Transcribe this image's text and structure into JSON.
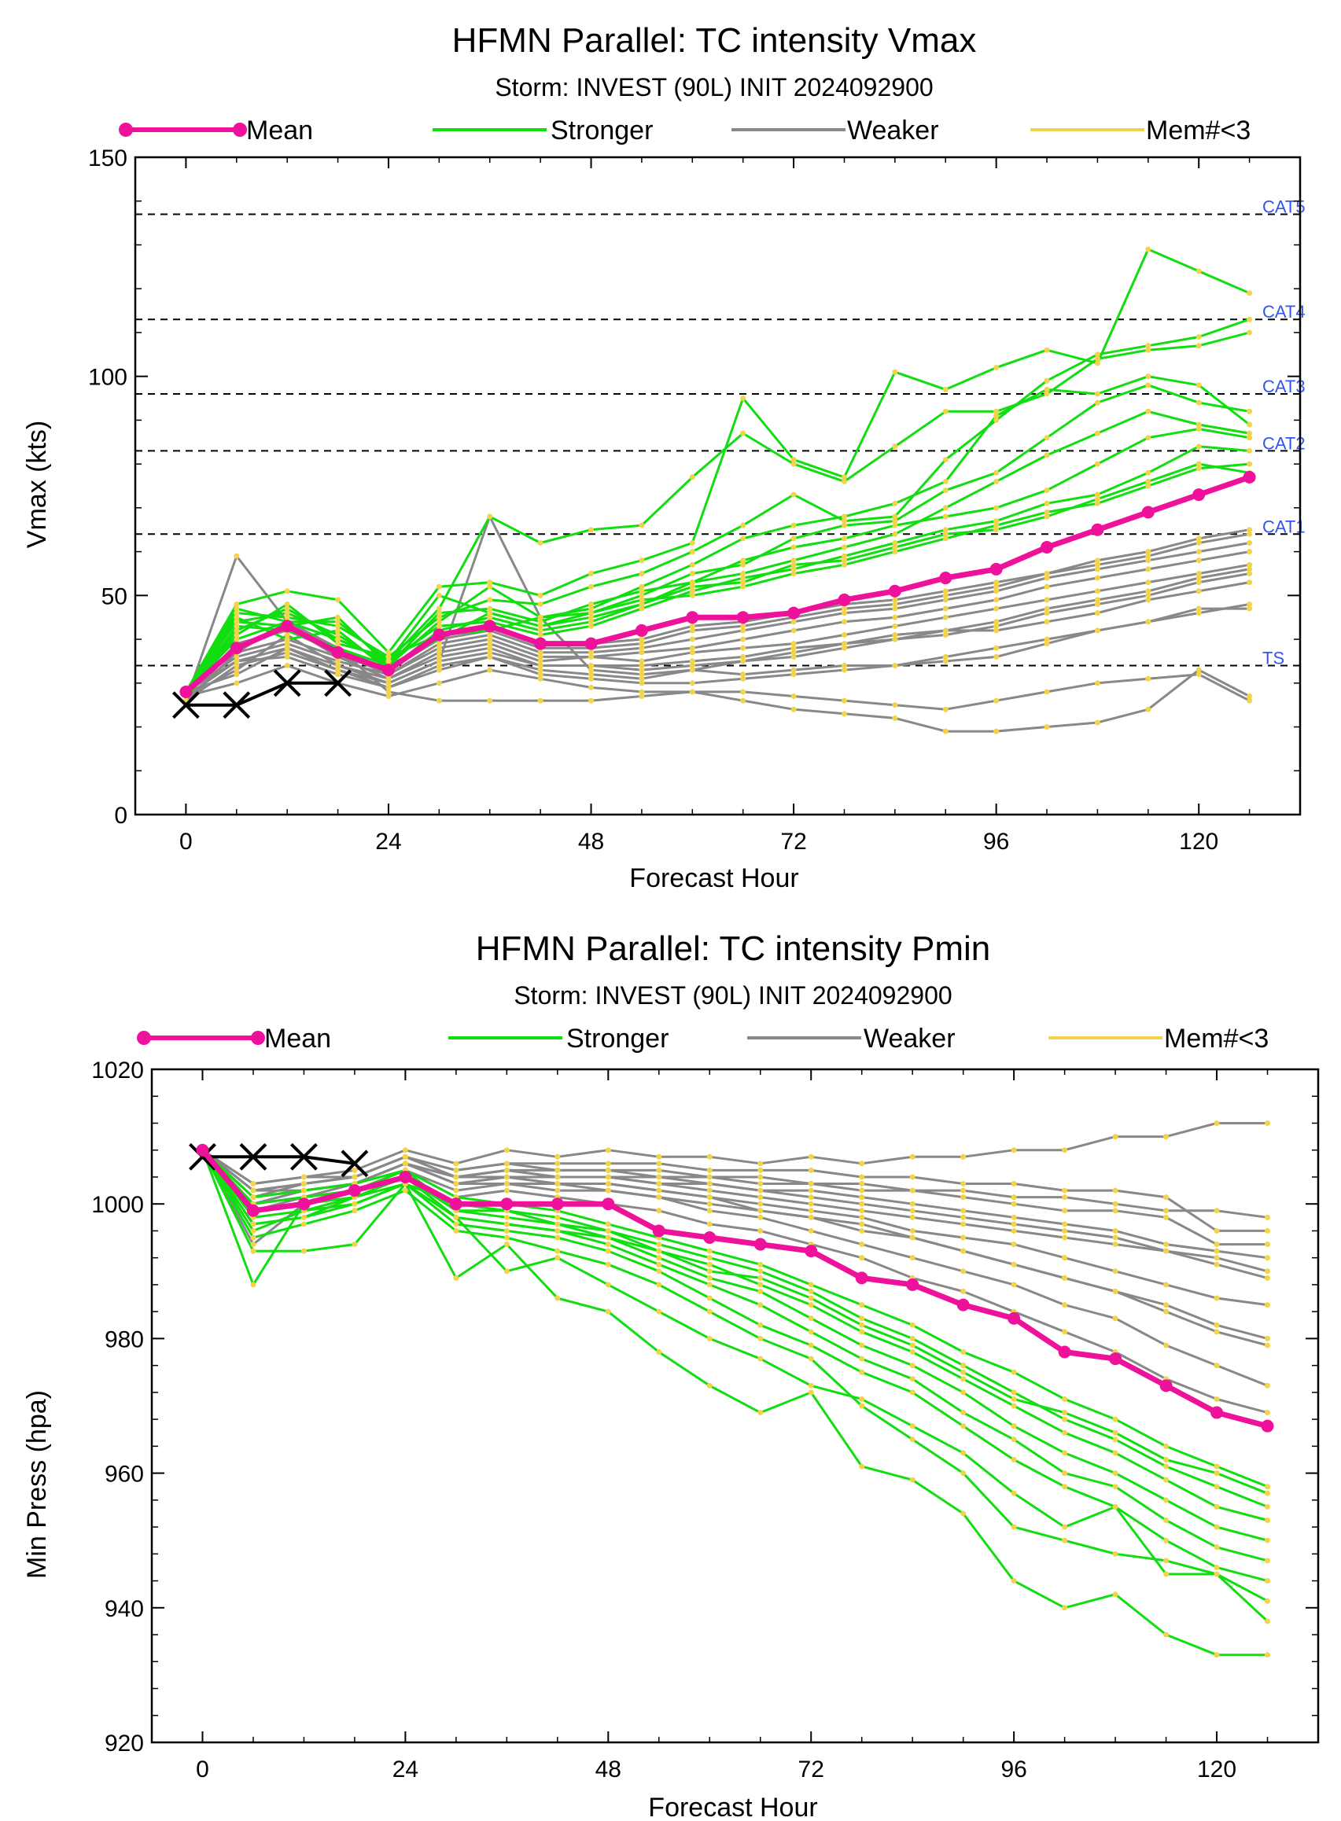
{
  "colors": {
    "mean": "#ee1199",
    "stronger": "#11dd11",
    "weaker": "#888888",
    "member_dot": "#f2d44a",
    "observed": "#000000",
    "category_label": "#3355ee"
  },
  "chart_data": [
    {
      "type": "line",
      "title": "HFMN Parallel: TC intensity Vmax",
      "subtitle": "Storm: INVEST (90L) INIT 2024092900",
      "xlabel": "Forecast Hour",
      "ylabel": "Vmax (kts)",
      "xlim": [
        -6,
        132
      ],
      "ylim": [
        0,
        150
      ],
      "xticks": [
        0,
        24,
        48,
        72,
        96,
        120
      ],
      "yticks": [
        0,
        50,
        100,
        150
      ],
      "legend_position": "top",
      "legend": [
        {
          "label": "Mean",
          "kind": "mean"
        },
        {
          "label": "Stronger",
          "kind": "stronger"
        },
        {
          "label": "Weaker",
          "kind": "weaker"
        },
        {
          "label": "Mem#<3",
          "kind": "member_dot"
        }
      ],
      "reference_lines": [
        {
          "label": "TS",
          "y": 34
        },
        {
          "label": "CAT1",
          "y": 64
        },
        {
          "label": "CAT2",
          "y": 83
        },
        {
          "label": "CAT3",
          "y": 96
        },
        {
          "label": "CAT4",
          "y": 113
        },
        {
          "label": "CAT5",
          "y": 137
        }
      ],
      "x": [
        0,
        6,
        12,
        18,
        24,
        30,
        36,
        42,
        48,
        54,
        60,
        66,
        72,
        78,
        84,
        90,
        96,
        102,
        108,
        114,
        120,
        126
      ],
      "mean": [
        28,
        38,
        43,
        37,
        33,
        41,
        43,
        39,
        39,
        42,
        45,
        45,
        46,
        49,
        51,
        54,
        56,
        61,
        65,
        69,
        73,
        77
      ],
      "observed": {
        "x": [
          0,
          6,
          12,
          18
        ],
        "y": [
          25,
          25,
          30,
          30
        ]
      },
      "stronger_members": [
        [
          28,
          48,
          51,
          49,
          37,
          52,
          53,
          50,
          55,
          58,
          62,
          95,
          81,
          77,
          101,
          97,
          102,
          106,
          103,
          129,
          124,
          119
        ],
        [
          27,
          47,
          44,
          40,
          35,
          47,
          68,
          62,
          65,
          66,
          77,
          87,
          80,
          76,
          84,
          92,
          92,
          96,
          104,
          106,
          107,
          110
        ],
        [
          26,
          46,
          45,
          43,
          36,
          45,
          49,
          48,
          52,
          55,
          60,
          66,
          73,
          67,
          68,
          81,
          90,
          99,
          105,
          107,
          109,
          113
        ],
        [
          28,
          44,
          46,
          41,
          34,
          44,
          52,
          45,
          47,
          52,
          57,
          63,
          66,
          68,
          71,
          76,
          91,
          97,
          96,
          100,
          98,
          89
        ],
        [
          27,
          42,
          47,
          40,
          35,
          50,
          46,
          43,
          46,
          50,
          55,
          57,
          63,
          66,
          67,
          74,
          78,
          86,
          94,
          98,
          94,
          92
        ],
        [
          26,
          45,
          40,
          42,
          33,
          42,
          45,
          42,
          44,
          48,
          53,
          55,
          58,
          61,
          64,
          70,
          76,
          82,
          87,
          92,
          89,
          87
        ],
        [
          27,
          43,
          42,
          38,
          34,
          46,
          47,
          44,
          48,
          51,
          53,
          58,
          61,
          63,
          66,
          68,
          70,
          74,
          80,
          86,
          88,
          86
        ],
        [
          28,
          40,
          44,
          44,
          35,
          43,
          44,
          41,
          43,
          47,
          51,
          54,
          56,
          59,
          62,
          65,
          67,
          71,
          73,
          78,
          84,
          83
        ],
        [
          27,
          41,
          48,
          39,
          36,
          41,
          42,
          45,
          46,
          49,
          50,
          52,
          55,
          57,
          60,
          63,
          66,
          69,
          71,
          75,
          79,
          80
        ],
        [
          28,
          44,
          43,
          45,
          34,
          40,
          46,
          43,
          45,
          48,
          52,
          53,
          57,
          58,
          61,
          64,
          65,
          68,
          72,
          76,
          80,
          78
        ]
      ],
      "weaker_members": [
        [
          26,
          59,
          44,
          38,
          28,
          26,
          26,
          26,
          26,
          27,
          28,
          28,
          27,
          26,
          25,
          24,
          26,
          28,
          30,
          31,
          32,
          26
        ],
        [
          27,
          30,
          34,
          30,
          27,
          30,
          33,
          31,
          29,
          28,
          28,
          26,
          24,
          23,
          22,
          19,
          19,
          20,
          21,
          24,
          33,
          27
        ],
        [
          28,
          35,
          38,
          33,
          29,
          33,
          36,
          33,
          32,
          31,
          33,
          32,
          33,
          34,
          34,
          35,
          36,
          39,
          42,
          44,
          47,
          47
        ],
        [
          27,
          33,
          41,
          34,
          30,
          35,
          37,
          34,
          34,
          33,
          34,
          35,
          37,
          39,
          40,
          42,
          42,
          44,
          46,
          49,
          51,
          53
        ],
        [
          26,
          37,
          40,
          36,
          31,
          37,
          39,
          35,
          36,
          35,
          37,
          38,
          39,
          41,
          43,
          45,
          47,
          49,
          51,
          53,
          55,
          57
        ],
        [
          28,
          36,
          39,
          35,
          32,
          38,
          40,
          36,
          36,
          37,
          38,
          40,
          42,
          44,
          45,
          47,
          49,
          52,
          54,
          56,
          58,
          60
        ],
        [
          27,
          39,
          42,
          37,
          32,
          39,
          41,
          37,
          37,
          38,
          40,
          42,
          44,
          46,
          47,
          49,
          51,
          54,
          56,
          58,
          60,
          62
        ],
        [
          26,
          34,
          37,
          33,
          30,
          35,
          68,
          45,
          33,
          32,
          33,
          35,
          36,
          38,
          40,
          41,
          43,
          46,
          48,
          50,
          53,
          55
        ],
        [
          28,
          38,
          43,
          36,
          33,
          40,
          42,
          38,
          38,
          39,
          42,
          43,
          45,
          47,
          48,
          50,
          52,
          55,
          57,
          59,
          62,
          64
        ],
        [
          27,
          35,
          36,
          32,
          29,
          34,
          36,
          32,
          31,
          30,
          30,
          31,
          32,
          33,
          34,
          36,
          38,
          40,
          42,
          44,
          46,
          48
        ],
        [
          26,
          37,
          44,
          38,
          33,
          41,
          43,
          39,
          39,
          40,
          43,
          44,
          46,
          48,
          49,
          51,
          53,
          55,
          58,
          60,
          63,
          65
        ],
        [
          28,
          32,
          38,
          34,
          31,
          36,
          38,
          34,
          34,
          34,
          35,
          36,
          38,
          39,
          41,
          42,
          44,
          47,
          49,
          51,
          54,
          56
        ]
      ]
    },
    {
      "type": "line",
      "title": "HFMN Parallel: TC intensity Pmin",
      "subtitle": "Storm: INVEST (90L) INIT 2024092900",
      "xlabel": "Forecast Hour",
      "ylabel": "Min Press (hpa)",
      "xlim": [
        -6,
        132
      ],
      "ylim": [
        920,
        1020
      ],
      "xticks": [
        0,
        24,
        48,
        72,
        96,
        120
      ],
      "yticks": [
        920,
        940,
        960,
        980,
        1000,
        1020
      ],
      "legend_position": "top",
      "legend": [
        {
          "label": "Mean",
          "kind": "mean"
        },
        {
          "label": "Stronger",
          "kind": "stronger"
        },
        {
          "label": "Weaker",
          "kind": "weaker"
        },
        {
          "label": "Mem#<3",
          "kind": "member_dot"
        }
      ],
      "reference_lines": [],
      "x": [
        0,
        6,
        12,
        18,
        24,
        30,
        36,
        42,
        48,
        54,
        60,
        66,
        72,
        78,
        84,
        90,
        96,
        102,
        108,
        114,
        120,
        126
      ],
      "mean": [
        1008,
        999,
        1000,
        1002,
        1004,
        1000,
        1000,
        1000,
        1000,
        996,
        995,
        994,
        993,
        989,
        988,
        985,
        983,
        978,
        977,
        973,
        969,
        967
      ],
      "observed": {
        "x": [
          0,
          6,
          12,
          18
        ],
        "y": [
          1007,
          1007,
          1007,
          1006
        ]
      },
      "stronger_members": [
        [
          1008,
          988,
          1000,
          1001,
          1003,
          989,
          994,
          986,
          984,
          978,
          973,
          969,
          972,
          961,
          959,
          954,
          944,
          940,
          942,
          936,
          933,
          933
        ],
        [
          1008,
          993,
          993,
          994,
          1003,
          998,
          990,
          992,
          988,
          984,
          980,
          977,
          973,
          971,
          967,
          963,
          957,
          952,
          955,
          945,
          945,
          938
        ],
        [
          1008,
          995,
          997,
          999,
          1002,
          996,
          995,
          993,
          991,
          988,
          984,
          980,
          977,
          970,
          965,
          960,
          952,
          950,
          948,
          947,
          945,
          941
        ],
        [
          1008,
          997,
          998,
          1000,
          1003,
          997,
          996,
          995,
          993,
          990,
          986,
          982,
          979,
          975,
          972,
          967,
          962,
          958,
          955,
          950,
          946,
          944
        ],
        [
          1008,
          998,
          999,
          1001,
          1004,
          998,
          997,
          996,
          994,
          991,
          988,
          985,
          981,
          977,
          974,
          969,
          965,
          960,
          958,
          953,
          949,
          947
        ],
        [
          1008,
          999,
          1000,
          1002,
          1004,
          999,
          998,
          997,
          995,
          992,
          989,
          987,
          983,
          979,
          976,
          972,
          967,
          963,
          960,
          956,
          952,
          950
        ],
        [
          1008,
          1000,
          1001,
          1002,
          1005,
          999,
          999,
          998,
          996,
          993,
          991,
          988,
          985,
          981,
          978,
          974,
          970,
          966,
          963,
          959,
          955,
          953
        ],
        [
          1008,
          996,
          999,
          1000,
          1003,
          1000,
          999,
          997,
          996,
          994,
          992,
          990,
          987,
          983,
          980,
          976,
          972,
          968,
          965,
          961,
          958,
          955
        ],
        [
          1008,
          1001,
          1002,
          1003,
          1005,
          1001,
          1000,
          999,
          997,
          995,
          993,
          991,
          988,
          985,
          982,
          978,
          975,
          971,
          968,
          964,
          961,
          958
        ],
        [
          1008,
          997,
          998,
          1001,
          1004,
          998,
          997,
          996,
          995,
          993,
          990,
          989,
          986,
          982,
          979,
          975,
          971,
          969,
          966,
          962,
          960,
          957
        ]
      ],
      "weaker_members": [
        [
          1008,
          1003,
          1004,
          1005,
          1008,
          1006,
          1008,
          1007,
          1008,
          1007,
          1007,
          1006,
          1007,
          1006,
          1007,
          1007,
          1008,
          1008,
          1010,
          1010,
          1012,
          1012
        ],
        [
          1008,
          1002,
          1003,
          1004,
          1007,
          1005,
          1006,
          1006,
          1006,
          1006,
          1005,
          1005,
          1005,
          1004,
          1004,
          1003,
          1003,
          1002,
          1002,
          1001,
          996,
          996
        ],
        [
          1008,
          1001,
          1003,
          1004,
          1007,
          1004,
          1005,
          1005,
          1005,
          1004,
          1004,
          1003,
          1003,
          1002,
          1002,
          1001,
          1000,
          999,
          999,
          998,
          994,
          994
        ],
        [
          1008,
          1000,
          1002,
          1003,
          1006,
          1003,
          1004,
          1004,
          1004,
          1003,
          1003,
          1002,
          1001,
          1000,
          999,
          998,
          997,
          996,
          995,
          993,
          991,
          989
        ],
        [
          1008,
          1002,
          1002,
          1003,
          1006,
          1004,
          1004,
          1003,
          1003,
          1002,
          1001,
          1000,
          999,
          998,
          996,
          995,
          994,
          992,
          990,
          988,
          986,
          985
        ],
        [
          1008,
          999,
          1001,
          1002,
          1005,
          1002,
          1003,
          1003,
          1002,
          1001,
          1000,
          999,
          998,
          996,
          995,
          993,
          991,
          989,
          987,
          984,
          981,
          979
        ],
        [
          1008,
          1000,
          1002,
          1003,
          1006,
          1003,
          1003,
          1002,
          1002,
          1001,
          999,
          998,
          996,
          994,
          992,
          990,
          988,
          985,
          983,
          979,
          976,
          973
        ],
        [
          1008,
          994,
          1000,
          1002,
          1005,
          1001,
          1002,
          1001,
          1000,
          999,
          997,
          996,
          994,
          992,
          989,
          987,
          984,
          981,
          978,
          974,
          971,
          969
        ],
        [
          1008,
          1001,
          1002,
          1003,
          1006,
          1004,
          1005,
          1004,
          1004,
          1003,
          1002,
          1001,
          1000,
          999,
          998,
          997,
          996,
          995,
          994,
          993,
          992,
          990
        ],
        [
          1008,
          1003,
          1004,
          1004,
          1007,
          1005,
          1006,
          1005,
          1005,
          1005,
          1004,
          1004,
          1003,
          1003,
          1002,
          1002,
          1001,
          1001,
          1000,
          999,
          999,
          998
        ],
        [
          1008,
          1000,
          1001,
          1003,
          1006,
          1003,
          1004,
          1003,
          1003,
          1002,
          1001,
          999,
          998,
          997,
          995,
          993,
          991,
          989,
          987,
          985,
          982,
          980
        ],
        [
          1008,
          1002,
          1003,
          1004,
          1007,
          1004,
          1005,
          1004,
          1004,
          1004,
          1003,
          1002,
          1002,
          1001,
          1000,
          999,
          998,
          997,
          996,
          994,
          993,
          992
        ]
      ]
    }
  ]
}
